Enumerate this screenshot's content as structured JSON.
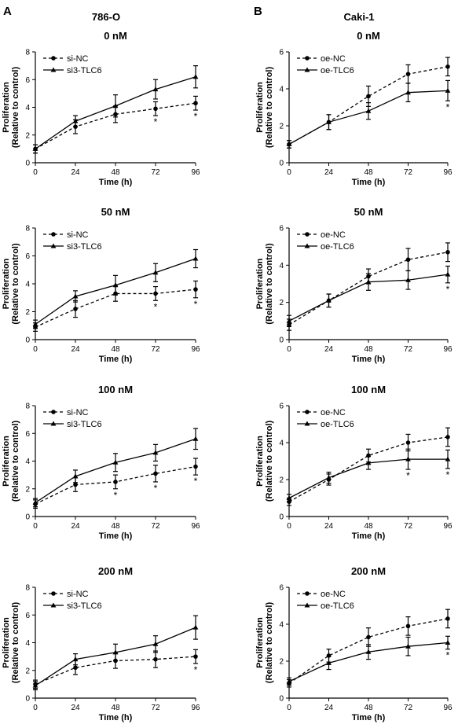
{
  "panels": [
    {
      "letter": "A",
      "cell_line": "786-O"
    },
    {
      "letter": "B",
      "cell_line": "Caki-1"
    }
  ],
  "chart_data": [
    {
      "type": "line",
      "panel": "A",
      "title": "0 nM",
      "xlabel": "Time (h)",
      "ylabel": "Proliferation",
      "ylabel2": "(Relative to control)",
      "xticks": [
        0,
        24,
        48,
        72,
        96
      ],
      "yticks": [
        0,
        2,
        4,
        6,
        8
      ],
      "xlim": [
        0,
        96
      ],
      "ylim": [
        0,
        8
      ],
      "grid": false,
      "legend": "top-left",
      "x": [
        0,
        24,
        48,
        72,
        96
      ],
      "series": [
        {
          "name": "si-NC",
          "style": "dashed",
          "marker": "circle",
          "values": [
            1.0,
            2.6,
            3.5,
            3.9,
            4.3
          ],
          "errors": [
            0.3,
            0.5,
            0.6,
            0.5,
            0.5
          ]
        },
        {
          "name": "si3-TLC6",
          "style": "solid",
          "marker": "triangle",
          "values": [
            1.0,
            3.0,
            4.1,
            5.3,
            6.2
          ],
          "errors": [
            0.3,
            0.4,
            0.8,
            0.7,
            0.8
          ]
        }
      ],
      "annotations": [
        {
          "x": 72,
          "text": "*"
        },
        {
          "x": 96,
          "text": "*"
        }
      ]
    },
    {
      "type": "line",
      "panel": "B",
      "title": "0 nM",
      "xlabel": "Time (h)",
      "ylabel": "Proliferation",
      "ylabel2": "(Relative to control)",
      "xticks": [
        0,
        24,
        48,
        72,
        96
      ],
      "yticks": [
        0,
        2,
        4,
        6
      ],
      "xlim": [
        0,
        96
      ],
      "ylim": [
        0,
        6
      ],
      "grid": false,
      "legend": "top-left",
      "x": [
        0,
        24,
        48,
        72,
        96
      ],
      "series": [
        {
          "name": "oe-NC",
          "style": "dashed",
          "marker": "circle",
          "values": [
            1.0,
            2.2,
            3.6,
            4.8,
            5.2
          ],
          "errors": [
            0.2,
            0.4,
            0.55,
            0.5,
            0.5
          ]
        },
        {
          "name": "oe-TLC6",
          "style": "solid",
          "marker": "triangle",
          "values": [
            1.0,
            2.2,
            2.8,
            3.8,
            3.9
          ],
          "errors": [
            0.2,
            0.4,
            0.45,
            0.5,
            0.55
          ]
        }
      ],
      "annotations": [
        {
          "x": 96,
          "text": "*"
        }
      ]
    },
    {
      "type": "line",
      "panel": "A",
      "title": "50 nM",
      "xlabel": "Time (h)",
      "ylabel": "Proliferation",
      "ylabel2": "(Relative to control)",
      "xticks": [
        0,
        24,
        48,
        72,
        96
      ],
      "yticks": [
        0,
        2,
        4,
        6,
        8
      ],
      "xlim": [
        0,
        96
      ],
      "ylim": [
        0,
        8
      ],
      "grid": false,
      "legend": "top-left",
      "x": [
        0,
        24,
        48,
        72,
        96
      ],
      "series": [
        {
          "name": "si-NC",
          "style": "dashed",
          "marker": "circle",
          "values": [
            0.9,
            2.2,
            3.3,
            3.3,
            3.6
          ],
          "errors": [
            0.3,
            0.6,
            0.55,
            0.5,
            0.6
          ]
        },
        {
          "name": "si3-TLC6",
          "style": "solid",
          "marker": "triangle",
          "values": [
            1.1,
            3.1,
            3.9,
            4.8,
            5.8
          ],
          "errors": [
            0.3,
            0.4,
            0.7,
            0.65,
            0.65
          ]
        }
      ],
      "annotations": [
        {
          "x": 72,
          "text": "*"
        },
        {
          "x": 96,
          "text": "*"
        }
      ]
    },
    {
      "type": "line",
      "panel": "B",
      "title": "50 nM",
      "xlabel": "Time (h)",
      "ylabel": "Proliferation",
      "ylabel2": "(Relative to control)",
      "xticks": [
        0,
        24,
        48,
        72,
        96
      ],
      "yticks": [
        0,
        2,
        4,
        6
      ],
      "xlim": [
        0,
        96
      ],
      "ylim": [
        0,
        6
      ],
      "grid": false,
      "legend": "top-left",
      "x": [
        0,
        24,
        48,
        72,
        96
      ],
      "series": [
        {
          "name": "oe-NC",
          "style": "dashed",
          "marker": "circle",
          "values": [
            0.8,
            2.1,
            3.4,
            4.3,
            4.7
          ],
          "errors": [
            0.3,
            0.35,
            0.4,
            0.6,
            0.5
          ]
        },
        {
          "name": "oe-TLC6",
          "style": "solid",
          "marker": "triangle",
          "values": [
            1.0,
            2.1,
            3.1,
            3.2,
            3.5
          ],
          "errors": [
            0.3,
            0.35,
            0.45,
            0.5,
            0.45
          ]
        }
      ],
      "annotations": [
        {
          "x": 96,
          "text": "*"
        }
      ]
    },
    {
      "type": "line",
      "panel": "A",
      "title": "100 nM",
      "xlabel": "Time (h)",
      "ylabel": "Proliferation",
      "ylabel2": "(Relative to control)",
      "xticks": [
        0,
        24,
        48,
        72,
        96
      ],
      "yticks": [
        0,
        2,
        4,
        6,
        8
      ],
      "xlim": [
        0,
        96
      ],
      "ylim": [
        0,
        8
      ],
      "grid": false,
      "legend": "top-left",
      "x": [
        0,
        24,
        48,
        72,
        96
      ],
      "series": [
        {
          "name": "si-NC",
          "style": "dashed",
          "marker": "circle",
          "values": [
            0.9,
            2.3,
            2.5,
            3.1,
            3.6
          ],
          "errors": [
            0.3,
            0.5,
            0.5,
            0.6,
            0.6
          ]
        },
        {
          "name": "si3-TLC6",
          "style": "solid",
          "marker": "triangle",
          "values": [
            1.0,
            2.9,
            3.9,
            4.6,
            5.6
          ],
          "errors": [
            0.3,
            0.45,
            0.65,
            0.6,
            0.75
          ]
        }
      ],
      "annotations": [
        {
          "x": 48,
          "text": "*"
        },
        {
          "x": 72,
          "text": "*"
        },
        {
          "x": 96,
          "text": "*"
        }
      ]
    },
    {
      "type": "line",
      "panel": "B",
      "title": "100 nM",
      "xlabel": "Time (h)",
      "ylabel": "Proliferation",
      "ylabel2": "(Relative to control)",
      "xticks": [
        0,
        24,
        48,
        72,
        96
      ],
      "yticks": [
        0,
        2,
        4,
        6
      ],
      "xlim": [
        0,
        96
      ],
      "ylim": [
        0,
        6
      ],
      "grid": false,
      "legend": "top-left",
      "x": [
        0,
        24,
        48,
        72,
        96
      ],
      "series": [
        {
          "name": "oe-NC",
          "style": "dashed",
          "marker": "circle",
          "values": [
            0.8,
            2.0,
            3.3,
            4.0,
            4.3
          ],
          "errors": [
            0.2,
            0.3,
            0.35,
            0.45,
            0.5
          ]
        },
        {
          "name": "oe-TLC6",
          "style": "solid",
          "marker": "triangle",
          "values": [
            1.0,
            2.1,
            2.9,
            3.1,
            3.1
          ],
          "errors": [
            0.2,
            0.3,
            0.35,
            0.55,
            0.5
          ]
        }
      ],
      "annotations": [
        {
          "x": 72,
          "text": "*"
        },
        {
          "x": 96,
          "text": "*"
        }
      ]
    },
    {
      "type": "line",
      "panel": "A",
      "title": "200 nM",
      "xlabel": "Time (h)",
      "ylabel": "Proliferation",
      "ylabel2": "(Relative to control)",
      "xticks": [
        0,
        24,
        48,
        72,
        96
      ],
      "yticks": [
        0,
        2,
        4,
        6,
        8
      ],
      "xlim": [
        0,
        96
      ],
      "ylim": [
        0,
        8
      ],
      "grid": false,
      "legend": "top-left",
      "x": [
        0,
        24,
        48,
        72,
        96
      ],
      "series": [
        {
          "name": "si-NC",
          "style": "dashed",
          "marker": "circle",
          "values": [
            1.0,
            2.2,
            2.7,
            2.8,
            3.0
          ],
          "errors": [
            0.3,
            0.5,
            0.55,
            0.6,
            0.5
          ]
        },
        {
          "name": "si3-TLC6",
          "style": "solid",
          "marker": "triangle",
          "values": [
            0.9,
            2.8,
            3.3,
            3.9,
            5.1
          ],
          "errors": [
            0.3,
            0.4,
            0.6,
            0.6,
            0.85
          ]
        }
      ],
      "annotations": [
        {
          "x": 96,
          "text": "*"
        }
      ]
    },
    {
      "type": "line",
      "panel": "B",
      "title": "200 nM",
      "xlabel": "Time (h)",
      "ylabel": "Proliferation",
      "ylabel2": "(Relative to control)",
      "xticks": [
        0,
        24,
        48,
        72,
        96
      ],
      "yticks": [
        0,
        2,
        4,
        6
      ],
      "xlim": [
        0,
        96
      ],
      "ylim": [
        0,
        6
      ],
      "grid": false,
      "legend": "top-left",
      "x": [
        0,
        24,
        48,
        72,
        96
      ],
      "series": [
        {
          "name": "oe-NC",
          "style": "dashed",
          "marker": "circle",
          "values": [
            0.8,
            2.3,
            3.3,
            3.9,
            4.3
          ],
          "errors": [
            0.2,
            0.35,
            0.5,
            0.5,
            0.5
          ]
        },
        {
          "name": "oe-TLC6",
          "style": "solid",
          "marker": "triangle",
          "values": [
            0.9,
            1.9,
            2.5,
            2.8,
            3.0
          ],
          "errors": [
            0.2,
            0.35,
            0.4,
            0.5,
            0.35
          ]
        }
      ],
      "annotations": [
        {
          "x": 96,
          "text": "*"
        }
      ]
    }
  ]
}
